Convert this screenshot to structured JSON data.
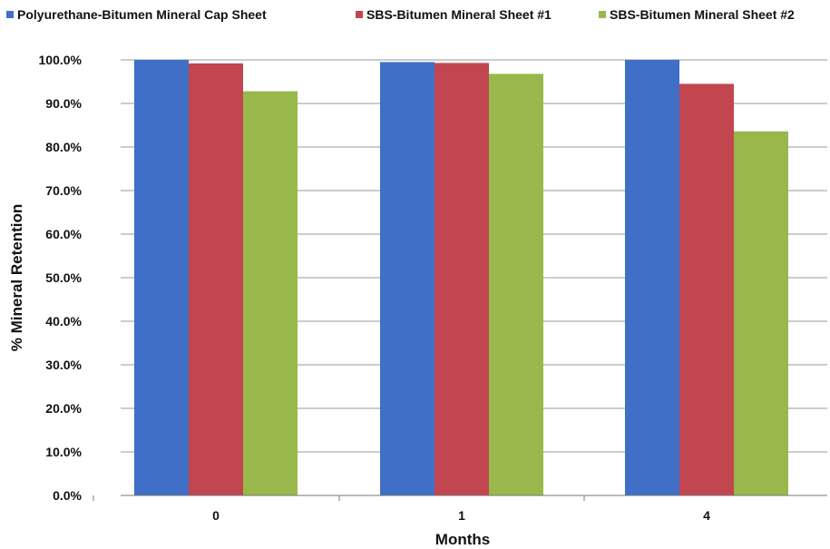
{
  "chart_data": {
    "type": "bar",
    "categories": [
      "0",
      "1",
      "4"
    ],
    "series": [
      {
        "name": "Polyurethane-Bitumen Mineral Cap Sheet",
        "values": [
          100.0,
          99.5,
          100.0
        ]
      },
      {
        "name": "SBS-Bitumen Mineral Sheet #1",
        "values": [
          99.2,
          99.3,
          94.5
        ]
      },
      {
        "name": "SBS-Bitumen Mineral Sheet #2",
        "values": [
          92.8,
          96.8,
          83.6
        ]
      }
    ],
    "xlabel": "Months",
    "ylabel": "% Mineral Retention",
    "ylim": [
      0,
      100
    ],
    "yticks": [
      "0.0%",
      "10.0%",
      "20.0%",
      "30.0%",
      "40.0%",
      "50.0%",
      "60.0%",
      "70.0%",
      "80.0%",
      "90.0%",
      "100.0%"
    ],
    "grid": true,
    "legend_position": "top",
    "colors": [
      "#3f6fc6",
      "#c2464f",
      "#99b84c"
    ]
  }
}
